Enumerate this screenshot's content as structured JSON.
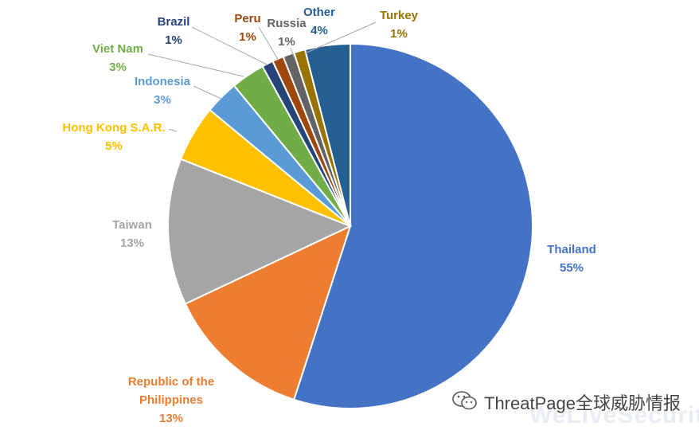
{
  "chart_data": {
    "type": "pie",
    "slices": [
      {
        "label": "Thailand",
        "value": 55,
        "pct_label": "55%",
        "color": "#4472C4"
      },
      {
        "label": "Republic of the Philippines",
        "value": 13,
        "pct_label": "13%",
        "color": "#ED7D31"
      },
      {
        "label": "Taiwan",
        "value": 13,
        "pct_label": "13%",
        "color": "#A5A5A5"
      },
      {
        "label": "Hong Kong S.A.R.",
        "value": 5,
        "pct_label": "5%",
        "color": "#FFC000"
      },
      {
        "label": "Indonesia",
        "value": 3,
        "pct_label": "3%",
        "color": "#5B9BD5"
      },
      {
        "label": "Viet Nam",
        "value": 3,
        "pct_label": "3%",
        "color": "#70AD47"
      },
      {
        "label": "Brazil",
        "value": 1,
        "pct_label": "1%",
        "color": "#264478"
      },
      {
        "label": "Peru",
        "value": 1,
        "pct_label": "1%",
        "color": "#9E480E"
      },
      {
        "label": "Russia",
        "value": 1,
        "pct_label": "1%",
        "color": "#636363"
      },
      {
        "label": "Turkey",
        "value": 1,
        "pct_label": "1%",
        "color": "#997300"
      },
      {
        "label": "Other",
        "value": 4,
        "pct_label": "4%",
        "color": "#255E91"
      }
    ],
    "legend": "none",
    "data_labels": "outside with leader lines"
  },
  "watermark": {
    "icon": "wechat-icon",
    "text": "ThreatPage全球威胁情报",
    "faint_text": "WeLiveSecurity"
  }
}
